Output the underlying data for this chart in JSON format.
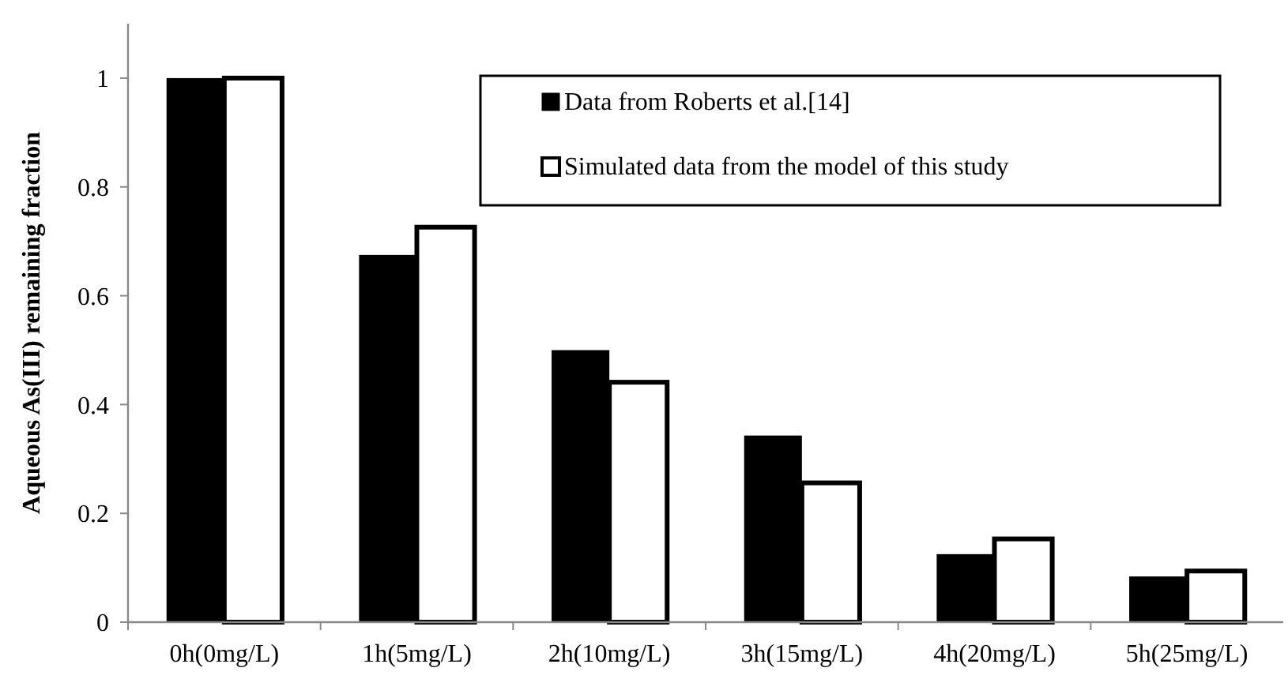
{
  "chart_data": {
    "type": "bar",
    "ylabel": "Aqueous As(III) remaining fraction",
    "categories": [
      "0h(0mg/L)",
      "1h(5mg/L)",
      "2h(10mg/L)",
      "3h(15mg/L)",
      "4h(20mg/L)",
      "5h(25mg/L)"
    ],
    "series": [
      {
        "name": "Data from Roberts et al.[14]",
        "color": "#000000",
        "values": [
          1,
          0.675,
          0.5,
          0.343,
          0.125,
          0.084
        ]
      },
      {
        "name": "Simulated data from the model of this study",
        "color": "#ffffff",
        "values": [
          1,
          0.726,
          0.441,
          0.256,
          0.153,
          0.094
        ]
      }
    ],
    "ylim": [
      0,
      1.1
    ],
    "yticks": [
      0,
      0.2,
      0.4,
      0.6,
      0.8,
      1
    ],
    "grid": false,
    "legend": "top right"
  }
}
